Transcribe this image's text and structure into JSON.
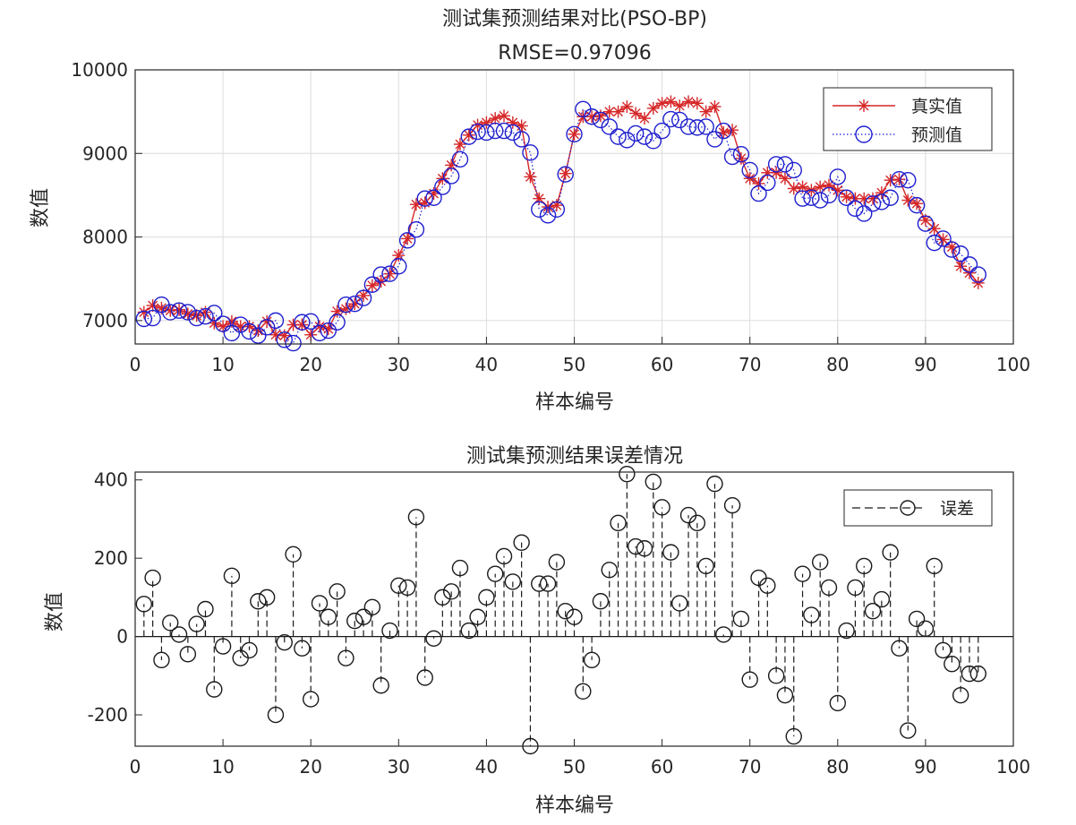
{
  "colors": {
    "truth": "#d62728",
    "pred": "#1f1fcf",
    "err": "#1a1a1a",
    "grid": "#dcdcdc"
  },
  "chart_data": [
    {
      "type": "line",
      "title": "测试集预测结果对比(PSO-BP)",
      "subtitle": "RMSE=0.97096",
      "xlabel": "样本编号",
      "ylabel": "数值",
      "xlim": [
        0,
        100
      ],
      "ylim": [
        6720,
        10000
      ],
      "xticks": [
        0,
        10,
        20,
        30,
        40,
        50,
        60,
        70,
        80,
        90,
        100
      ],
      "yticks": [
        7000,
        8000,
        9000,
        10000
      ],
      "grid": true,
      "legend_position": "top-right",
      "series": [
        {
          "name": "真实值",
          "style": "solid-red-star",
          "x": [
            1,
            2,
            3,
            4,
            5,
            6,
            7,
            8,
            9,
            10,
            11,
            12,
            13,
            14,
            15,
            16,
            17,
            18,
            19,
            20,
            21,
            22,
            23,
            24,
            25,
            26,
            27,
            28,
            29,
            30,
            31,
            32,
            33,
            34,
            35,
            36,
            37,
            38,
            39,
            40,
            41,
            42,
            43,
            44,
            45,
            46,
            47,
            48,
            49,
            50,
            51,
            52,
            53,
            54,
            55,
            56,
            57,
            58,
            59,
            60,
            61,
            62,
            63,
            64,
            65,
            66,
            67,
            68,
            69,
            70,
            71,
            72,
            73,
            74,
            75,
            76,
            77,
            78,
            79,
            80,
            81,
            82,
            83,
            84,
            85,
            86,
            87,
            88,
            89,
            90,
            91,
            92,
            93,
            94,
            95,
            96
          ],
          "values": [
            7100,
            7180,
            7150,
            7120,
            7130,
            7080,
            7060,
            7100,
            6970,
            6930,
            6990,
            6930,
            6930,
            6880,
            6990,
            6830,
            6820,
            6950,
            6950,
            6830,
            6930,
            6900,
            7110,
            7140,
            7200,
            7300,
            7420,
            7470,
            7560,
            7780,
            7980,
            8390,
            8410,
            8520,
            8700,
            8860,
            9110,
            9220,
            9340,
            9370,
            9420,
            9450,
            9370,
            9330,
            8720,
            8460,
            8360,
            8380,
            8760,
            9230,
            9440,
            9440,
            9450,
            9500,
            9500,
            9560,
            9480,
            9420,
            9540,
            9600,
            9620,
            9570,
            9620,
            9600,
            9500,
            9560,
            9250,
            9280,
            8940,
            8700,
            8640,
            8770,
            8770,
            8700,
            8580,
            8600,
            8560,
            8600,
            8620,
            8560,
            8480,
            8460,
            8460,
            8460,
            8530,
            8680,
            8690,
            8440,
            8400,
            8200,
            8100,
            7970,
            7880,
            7650,
            7570,
            7450
          ]
        },
        {
          "name": "预测值",
          "style": "dotted-blue-circle",
          "x": [
            1,
            2,
            3,
            4,
            5,
            6,
            7,
            8,
            9,
            10,
            11,
            12,
            13,
            14,
            15,
            16,
            17,
            18,
            19,
            20,
            21,
            22,
            23,
            24,
            25,
            26,
            27,
            28,
            29,
            30,
            31,
            32,
            33,
            34,
            35,
            36,
            37,
            38,
            39,
            40,
            41,
            42,
            43,
            44,
            45,
            46,
            47,
            48,
            49,
            50,
            51,
            52,
            53,
            54,
            55,
            56,
            57,
            58,
            59,
            60,
            61,
            62,
            63,
            64,
            65,
            66,
            67,
            68,
            69,
            70,
            71,
            72,
            73,
            74,
            75,
            76,
            77,
            78,
            79,
            80,
            81,
            82,
            83,
            84,
            85,
            86,
            87,
            88,
            89,
            90,
            91,
            92,
            93,
            94,
            95,
            96
          ],
          "values": [
            7020,
            7030,
            7190,
            7100,
            7120,
            7100,
            7030,
            7050,
            7090,
            6960,
            6850,
            6950,
            6870,
            6820,
            6920,
            7000,
            6770,
            6730,
            6980,
            6990,
            6850,
            6880,
            6980,
            7190,
            7200,
            7270,
            7430,
            7550,
            7560,
            7650,
            7960,
            8090,
            8460,
            8470,
            8600,
            8730,
            8930,
            9200,
            9260,
            9250,
            9270,
            9270,
            9250,
            9170,
            9010,
            8330,
            8260,
            8330,
            8750,
            9230,
            9530,
            9440,
            9400,
            9320,
            9200,
            9160,
            9240,
            9200,
            9150,
            9270,
            9410,
            9400,
            9320,
            9310,
            9320,
            9170,
            9270,
            8960,
            8990,
            8800,
            8520,
            8650,
            8870,
            8870,
            8800,
            8460,
            8470,
            8440,
            8500,
            8720,
            8470,
            8340,
            8280,
            8400,
            8420,
            8470,
            8690,
            8680,
            8380,
            8160,
            7930,
            7980,
            7850,
            7800,
            7670,
            7550
          ]
        }
      ]
    },
    {
      "type": "stem",
      "title": "测试集预测结果误差情况",
      "xlabel": "样本编号",
      "ylabel": "数值",
      "xlim": [
        0,
        100
      ],
      "ylim": [
        -280,
        420
      ],
      "xticks": [
        0,
        10,
        20,
        30,
        40,
        50,
        60,
        70,
        80,
        90,
        100
      ],
      "yticks": [
        -200,
        0,
        200,
        400
      ],
      "grid": false,
      "legend_position": "top-right",
      "series": [
        {
          "name": "误差",
          "style": "dashed-black-circle",
          "x": [
            1,
            2,
            3,
            4,
            5,
            6,
            7,
            8,
            9,
            10,
            11,
            12,
            13,
            14,
            15,
            16,
            17,
            18,
            19,
            20,
            21,
            22,
            23,
            24,
            25,
            26,
            27,
            28,
            29,
            30,
            31,
            32,
            33,
            34,
            35,
            36,
            37,
            38,
            39,
            40,
            41,
            42,
            43,
            44,
            45,
            46,
            47,
            48,
            49,
            50,
            51,
            52,
            53,
            54,
            55,
            56,
            57,
            58,
            59,
            60,
            61,
            62,
            63,
            64,
            65,
            66,
            67,
            68,
            69,
            70,
            71,
            72,
            73,
            74,
            75,
            76,
            77,
            78,
            79,
            80,
            81,
            82,
            83,
            84,
            85,
            86,
            87,
            88,
            89,
            90,
            91,
            92,
            93,
            94,
            95,
            96
          ],
          "values": [
            83,
            150,
            -60,
            35,
            5,
            -45,
            32,
            70,
            -135,
            -25,
            155,
            -55,
            -35,
            90,
            100,
            -200,
            -15,
            210,
            -30,
            -160,
            85,
            50,
            115,
            -55,
            40,
            50,
            75,
            -125,
            15,
            130,
            125,
            305,
            -105,
            -5,
            100,
            115,
            175,
            15,
            50,
            100,
            160,
            205,
            140,
            240,
            -280,
            135,
            135,
            190,
            65,
            50,
            -140,
            -60,
            90,
            170,
            290,
            415,
            230,
            225,
            395,
            330,
            215,
            85,
            310,
            290,
            180,
            390,
            5,
            335,
            45,
            -110,
            150,
            130,
            -100,
            -150,
            -255,
            160,
            55,
            190,
            125,
            -170,
            15,
            125,
            180,
            65,
            95,
            215,
            -30,
            -240,
            45,
            20,
            180,
            -35,
            -70,
            -150,
            -95,
            -95
          ]
        }
      ]
    }
  ]
}
